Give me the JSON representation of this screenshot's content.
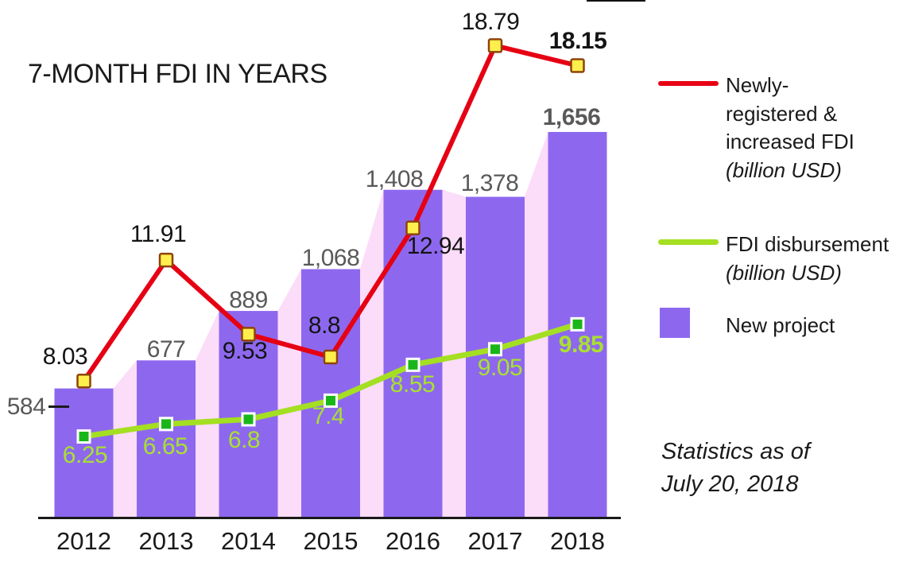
{
  "title": "7-MONTH FDI IN YEARS",
  "note": {
    "line1": "Statistics as of",
    "line2": "July 20, 2018"
  },
  "legend": {
    "red": {
      "lines": [
        "Newly-",
        "registered &",
        "increased FDI"
      ],
      "unit": "(billion USD)"
    },
    "green": {
      "lines": [
        "FDI disbursement"
      ],
      "unit": "(billion USD)"
    },
    "bar": {
      "label": "New project"
    }
  },
  "colors": {
    "bar": "#8d68ef",
    "area": "#fbdcf9",
    "red_line": "#e60013",
    "red_marker_fill": "#ffef4d",
    "red_marker_stroke": "#8e430b",
    "green_line": "#a4df22",
    "green_marker_fill": "#19b619",
    "green_marker_stroke": "#ffffff",
    "bar_label": "#595959",
    "green_label": "#a9e030",
    "axis": "#1a1a1a"
  },
  "chart_data": {
    "type": "combo",
    "title": "7-MONTH FDI IN YEARS",
    "categories": [
      "2012",
      "2013",
      "2014",
      "2015",
      "2016",
      "2017",
      "2018"
    ],
    "series": [
      {
        "name": "New project",
        "type": "bar",
        "values": [
          584,
          677,
          889,
          1068,
          1408,
          1378,
          1656
        ],
        "labels": [
          "584",
          "677",
          "889",
          "1,068",
          "1,408",
          "1,378",
          "1,656"
        ],
        "bold_index": 6
      },
      {
        "name": "Newly-registered & increased FDI (billion USD)",
        "type": "line",
        "values": [
          8.03,
          11.91,
          9.53,
          8.8,
          12.94,
          18.79,
          18.15
        ],
        "labels": [
          "8.03",
          "11.91",
          "9.53",
          "8.8",
          "12.94",
          "18.79",
          "18.15"
        ],
        "bold_index": 6
      },
      {
        "name": "FDI disbursement (billion USD)",
        "type": "line",
        "values": [
          6.25,
          6.65,
          6.8,
          7.4,
          8.55,
          9.05,
          9.85
        ],
        "labels": [
          "6.25",
          "6.65",
          "6.8",
          "7.4",
          "8.55",
          "9.05",
          "9.85"
        ],
        "bold_index": 6
      }
    ],
    "annotations": {
      "first_bar_callout": "584"
    },
    "legend_position": "right",
    "grid": false
  }
}
